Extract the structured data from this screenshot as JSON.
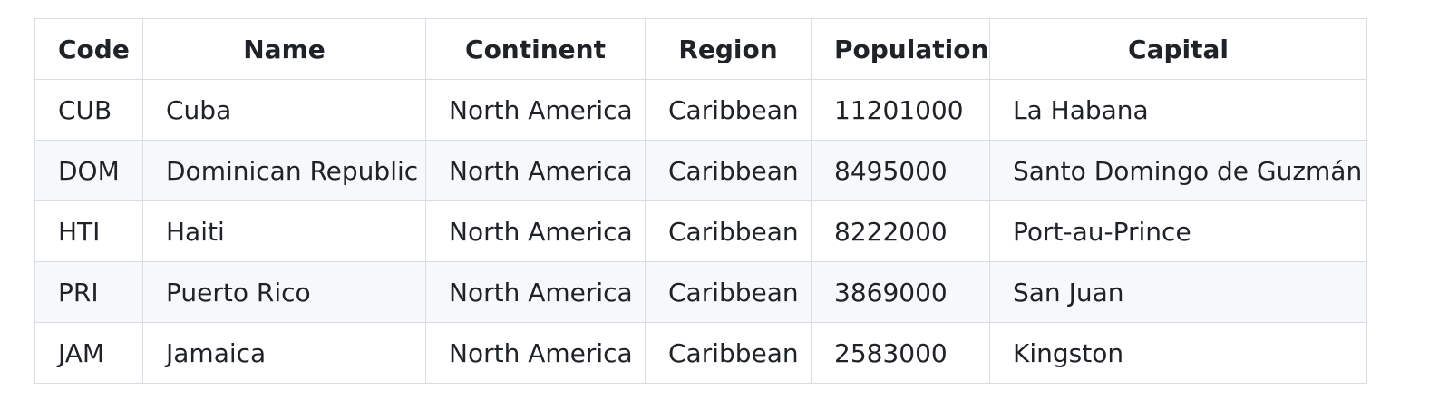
{
  "table": {
    "headers": [
      "Code",
      "Name",
      "Continent",
      "Region",
      "Population",
      "Capital"
    ],
    "rows": [
      [
        "CUB",
        "Cuba",
        "North America",
        "Caribbean",
        "11201000",
        "La Habana"
      ],
      [
        "DOM",
        "Dominican Republic",
        "North America",
        "Caribbean",
        "8495000",
        "Santo Domingo de Guzmán"
      ],
      [
        "HTI",
        "Haiti",
        "North America",
        "Caribbean",
        "8222000",
        "Port-au-Prince"
      ],
      [
        "PRI",
        "Puerto Rico",
        "North America",
        "Caribbean",
        "3869000",
        "San Juan"
      ],
      [
        "JAM",
        "Jamaica",
        "North America",
        "Caribbean",
        "2583000",
        "Kingston"
      ]
    ]
  },
  "colors": {
    "border": "#d8dee4",
    "stripe": "#f6f8fa",
    "text": "#1f2328"
  }
}
